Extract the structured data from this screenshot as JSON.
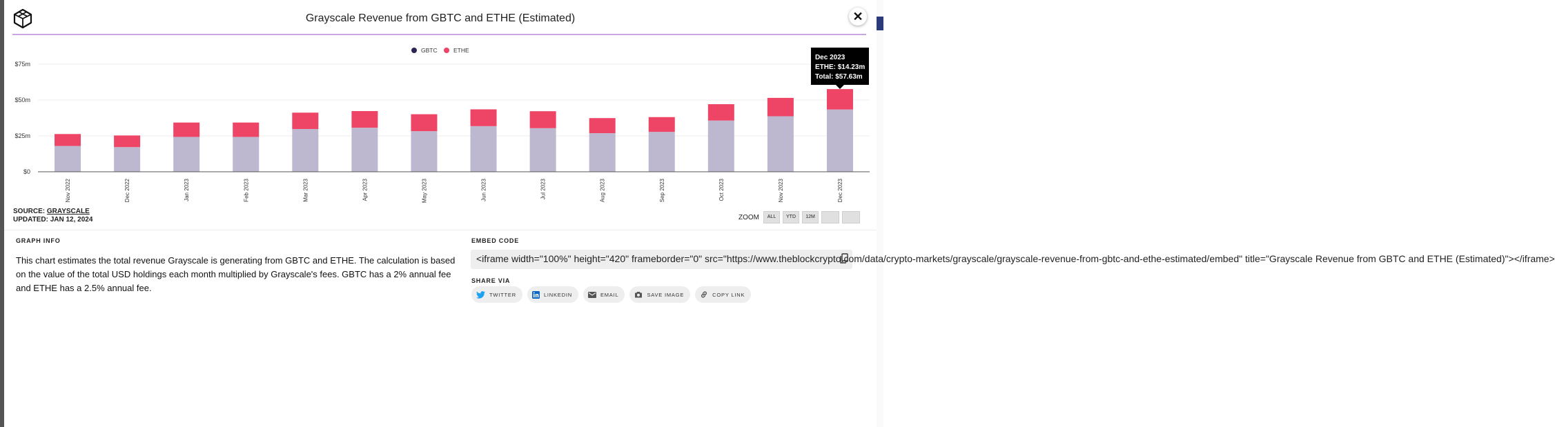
{
  "modal": {
    "title": "Grayscale Revenue from GBTC and ETHE (Estimated)",
    "close_label": "✕"
  },
  "chart_data": {
    "type": "bar",
    "stacked": true,
    "categories": [
      "Nov 2022",
      "Dec 2022",
      "Jan 2023",
      "Feb 2023",
      "Mar 2023",
      "Apr 2023",
      "May 2023",
      "Jun 2023",
      "Jul 2023",
      "Aug 2023",
      "Sep 2023",
      "Oct 2023",
      "Nov 2023",
      "Dec 2023"
    ],
    "series": [
      {
        "name": "GBTC",
        "color": "#bdb8d0",
        "legend_color": "#2d2654",
        "values": [
          18,
          17.2,
          24.3,
          24.3,
          29.8,
          30.7,
          28.3,
          31.8,
          30.4,
          26.9,
          27.8,
          35.7,
          38.7,
          43.4
        ]
      },
      {
        "name": "ETHE",
        "color": "#ee4466",
        "legend_color": "#ee4466",
        "values": [
          8.3,
          8.1,
          10,
          10,
          11.4,
          11.6,
          11.8,
          11.7,
          11.8,
          10.5,
          10.3,
          11.4,
          12.8,
          14.23
        ]
      }
    ],
    "ylim": [
      0,
      75
    ],
    "yticks": [
      {
        "value": 0,
        "label": "$0"
      },
      {
        "value": 25,
        "label": "$25m"
      },
      {
        "value": 50,
        "label": "$50m"
      },
      {
        "value": 75,
        "label": "$75m"
      }
    ],
    "legend_position": "top-center",
    "grid": true,
    "tooltip": {
      "category_index": 13,
      "title": "Dec 2023",
      "line1": "ETHE: $14.23m",
      "line2": "Total: $57.63m"
    }
  },
  "source": {
    "label": "SOURCE:",
    "link": "GRAYSCALE",
    "updated": "UPDATED: JAN 12, 2024"
  },
  "zoom": {
    "label": "ZOOM",
    "buttons": [
      "ALL",
      "YTD",
      "12M",
      "",
      ""
    ]
  },
  "graph_info": {
    "heading": "GRAPH INFO",
    "text": "This chart estimates the total revenue Grayscale is generating from GBTC and ETHE. The calculation is based on the value of the total USD holdings each month multiplied by Grayscale's fees. GBTC has a 2% annual fee and ETHE has a 2.5% annual fee."
  },
  "embed": {
    "heading": "EMBED CODE",
    "code": "<iframe width=\"100%\" height=\"420\" frameborder=\"0\" src=\"https://www.theblockcrypto.com/data/crypto-markets/grayscale/grayscale-revenue-from-gbtc-and-ethe-estimated/embed\" title=\"Grayscale Revenue from GBTC and ETHE (Estimated)\"></iframe>"
  },
  "share": {
    "heading": "SHARE VIA",
    "twitter": "TWITTER",
    "linkedin": "LINKEDIN",
    "email": "EMAIL",
    "save_image": "SAVE IMAGE",
    "copy_link": "COPY LINK"
  },
  "icons": {
    "logo": "the-block-cube-icon",
    "copy": "copy-icon",
    "twitter": "twitter-icon",
    "linkedin": "linkedin-icon",
    "email": "envelope-icon",
    "save_image": "camera-icon",
    "copy_link": "link-icon"
  },
  "colors": {
    "accent_rule": "#c9a6e0",
    "twitter": "#1da1f2",
    "linkedin": "#0a66c2"
  }
}
